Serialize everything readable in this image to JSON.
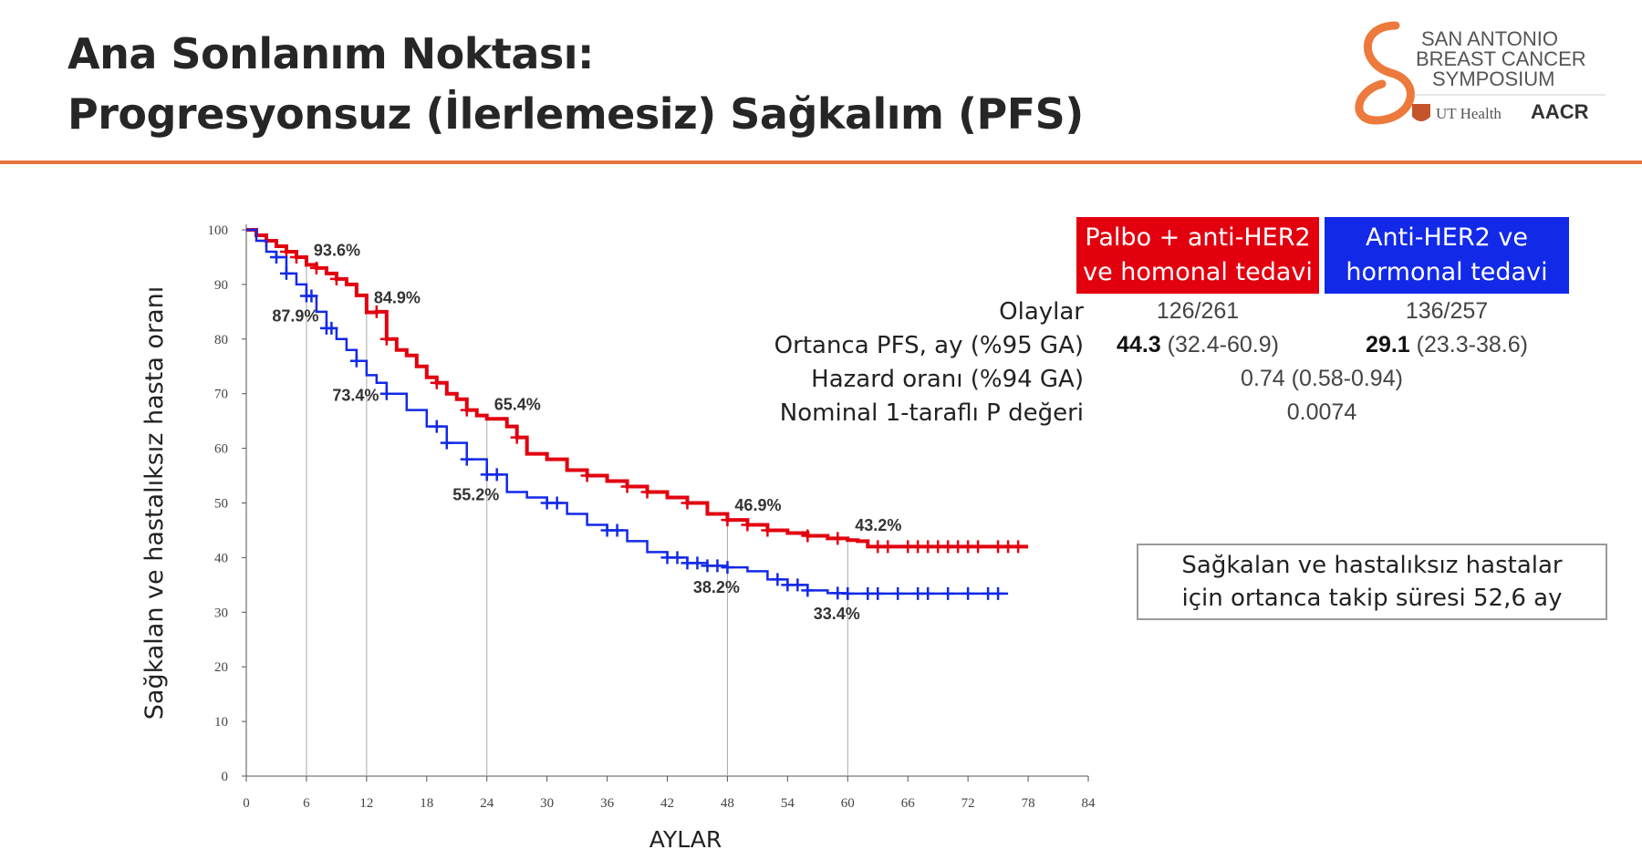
{
  "slide": {
    "title_line1": "Ana Sonlanım Noktası:",
    "title_line2": "Progresyonsuz (İlerlemesiz) Sağkalım (PFS)"
  },
  "logo": {
    "line1": "SAN ANTONIO",
    "line2": "BREAST CANCER",
    "line3": "SYMPOSIUM",
    "ut": "UT Health",
    "aacr": "AACR"
  },
  "legend": {
    "palbo": {
      "line1": "Palbo + anti-HER2",
      "line2": "ve homonal tedavi",
      "color": "#e2000f"
    },
    "anti": {
      "line1": "Anti-HER2 ve",
      "line2": "hormonal tedavi",
      "color": "#1229e8"
    }
  },
  "stats": {
    "events": {
      "label": "Olaylar",
      "palbo": "126/261",
      "anti": "136/257"
    },
    "median": {
      "label": "Ortanca PFS, ay (%95 GA)",
      "palbo_bold": "44.3",
      "palbo_ci": "(32.4-60.9)",
      "anti_bold": "29.1",
      "anti_ci": "(23.3-38.6)"
    },
    "hazard": {
      "label": "Hazard oranı (%94 GA)",
      "value": "0.74 (0.58-0.94)"
    },
    "pvalue": {
      "label": "Nominal 1-taraflı P değeri",
      "value": "0.0074"
    }
  },
  "followup": {
    "line1": "Sağkalan ve hastalıksız hastalar",
    "line2": "için ortanca takip süresi 52,6 ay"
  },
  "chart_data": {
    "type": "line",
    "xlabel": "AYLAR",
    "ylabel": "Sağkalan ve hastalıksız hasta oranı",
    "xlim": [
      0,
      84
    ],
    "ylim": [
      0,
      100
    ],
    "xticks": [
      "0",
      "6",
      "12",
      "18",
      "24",
      "30",
      "36",
      "42",
      "48",
      "54",
      "60",
      "66",
      "72",
      "78",
      "84"
    ],
    "yticks": [
      "0",
      "10",
      "20",
      "30",
      "40",
      "50",
      "60",
      "70",
      "80",
      "90",
      "100"
    ],
    "reference_months": [
      6,
      12,
      24,
      48,
      60
    ],
    "series": [
      {
        "name": "Palbo + anti-HER2 ve homonal tedavi",
        "color": "#e2000f",
        "x": [
          0,
          1,
          2,
          3,
          4,
          5,
          6,
          7,
          8,
          9,
          10,
          11,
          12,
          13,
          14,
          15,
          16,
          17,
          18,
          19,
          20,
          21,
          22,
          23,
          24,
          26,
          27,
          28,
          30,
          32,
          34,
          36,
          38,
          40,
          42,
          44,
          46,
          48,
          50,
          52,
          54,
          56,
          58,
          60,
          61,
          62,
          64,
          66,
          68,
          70,
          72,
          74,
          76,
          78
        ],
        "y": [
          100,
          99,
          98,
          97,
          96,
          95,
          93.6,
          93,
          92,
          91,
          90,
          88,
          84.9,
          85,
          80,
          78,
          77,
          75,
          73,
          72,
          70,
          69,
          67,
          66,
          65.4,
          64,
          62,
          59,
          58,
          56,
          55,
          54,
          53,
          52,
          51,
          50,
          48,
          46.9,
          46,
          45,
          44.5,
          44,
          43.5,
          43.2,
          43,
          42,
          42,
          42,
          42,
          42,
          42,
          42,
          42,
          42
        ],
        "censor_x": [
          2,
          4,
          5,
          7,
          9,
          13,
          14,
          19,
          22,
          27,
          34,
          38,
          40,
          44,
          48,
          50,
          52,
          56,
          59,
          63,
          64,
          66,
          67,
          68,
          69,
          70,
          71,
          72,
          73,
          75,
          76,
          77
        ],
        "labels": [
          {
            "text": "93.6%",
            "x": 6,
            "y": 93.6
          },
          {
            "text": "84.9%",
            "x": 12,
            "y": 84.9
          },
          {
            "text": "65.4%",
            "x": 24,
            "y": 65.4
          },
          {
            "text": "46.9%",
            "x": 48,
            "y": 46.9
          },
          {
            "text": "43.2%",
            "x": 60,
            "y": 43.2
          }
        ]
      },
      {
        "name": "Anti-HER2 ve hormonal tedavi",
        "color": "#1229e8",
        "x": [
          0,
          1,
          2,
          3,
          4,
          5,
          6,
          7,
          8,
          9,
          10,
          11,
          12,
          13,
          14,
          16,
          18,
          20,
          22,
          24,
          26,
          28,
          30,
          32,
          34,
          36,
          38,
          40,
          42,
          44,
          46,
          48,
          50,
          52,
          54,
          56,
          58,
          60,
          62,
          64,
          66,
          68,
          70,
          72,
          74,
          76
        ],
        "y": [
          100,
          98,
          96,
          95,
          92,
          90,
          87.9,
          85,
          82,
          80,
          78,
          76,
          73.4,
          72,
          70,
          67,
          64,
          61,
          58,
          55.2,
          52,
          51,
          50,
          48,
          46,
          45,
          43,
          41,
          40,
          39,
          38.5,
          38.2,
          37.5,
          36,
          35,
          34,
          33.5,
          33.4,
          33.4,
          33.4,
          33.4,
          33.4,
          33.4,
          33.4,
          33.4,
          33.4
        ],
        "censor_x": [
          3,
          4,
          6,
          6.5,
          8,
          8.5,
          11,
          14,
          19,
          20,
          22,
          24,
          25,
          30,
          31,
          36,
          37,
          42,
          43,
          44,
          45,
          46,
          47,
          48,
          53,
          54,
          55,
          56,
          59,
          60,
          62,
          63,
          65,
          67,
          68,
          70,
          72,
          74,
          75
        ],
        "labels": [
          {
            "text": "87.9%",
            "x": 6,
            "y": 87.9
          },
          {
            "text": "73.4%",
            "x": 12,
            "y": 73.4
          },
          {
            "text": "55.2%",
            "x": 24,
            "y": 55.2
          },
          {
            "text": "38.2%",
            "x": 48,
            "y": 38.2
          },
          {
            "text": "33.4%",
            "x": 60,
            "y": 33.4
          }
        ]
      }
    ]
  }
}
